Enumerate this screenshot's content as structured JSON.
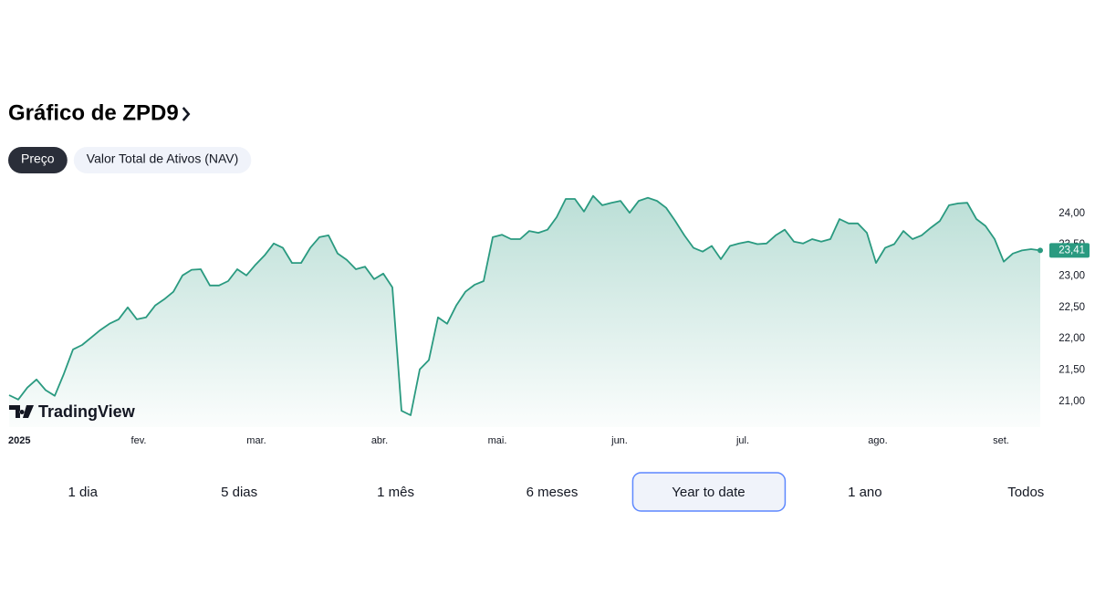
{
  "header": {
    "title": "Gráfico de ZPD9"
  },
  "tabs": [
    {
      "label": "Preço",
      "active": true
    },
    {
      "label": "Valor Total de Ativos (NAV)",
      "active": false
    }
  ],
  "chart_data": {
    "type": "area",
    "watermark": "TradingView",
    "color": "#2a9a80",
    "values": [
      21.1,
      21.03,
      21.22,
      21.35,
      21.18,
      21.09,
      21.44,
      21.83,
      21.9,
      22.02,
      22.14,
      22.24,
      22.31,
      22.5,
      22.31,
      22.34,
      22.53,
      22.63,
      22.75,
      23.01,
      23.1,
      23.11,
      22.85,
      22.85,
      22.92,
      23.11,
      23.01,
      23.18,
      23.33,
      23.52,
      23.45,
      23.21,
      23.21,
      23.45,
      23.62,
      23.65,
      23.36,
      23.26,
      23.11,
      23.15,
      22.95,
      23.04,
      22.82,
      20.85,
      20.78,
      21.51,
      21.66,
      22.34,
      22.24,
      22.53,
      22.75,
      22.86,
      22.92,
      23.62,
      23.66,
      23.59,
      23.59,
      23.72,
      23.69,
      23.74,
      23.94,
      24.23,
      24.23,
      24.03,
      24.28,
      24.13,
      24.17,
      24.2,
      24.01,
      24.2,
      24.25,
      24.2,
      24.09,
      23.88,
      23.65,
      23.45,
      23.39,
      23.48,
      23.27,
      23.48,
      23.52,
      23.55,
      23.51,
      23.52,
      23.65,
      23.74,
      23.55,
      23.52,
      23.59,
      23.55,
      23.59,
      23.91,
      23.84,
      23.84,
      23.69,
      23.21,
      23.45,
      23.51,
      23.72,
      23.59,
      23.65,
      23.77,
      23.88,
      24.13,
      24.16,
      24.17,
      23.91,
      23.8,
      23.59,
      23.23,
      23.36,
      23.41,
      23.43,
      23.41
    ],
    "price_tag": {
      "value": 23.41,
      "label": "23,41"
    },
    "xlim": [
      0,
      113
    ],
    "xticks": [
      {
        "value": 0,
        "label": "2025"
      },
      {
        "value": 14.2,
        "label": "fev."
      },
      {
        "value": 27.1,
        "label": "mar."
      },
      {
        "value": 40.6,
        "label": "abr."
      },
      {
        "value": 53.5,
        "label": "mai."
      },
      {
        "value": 66.9,
        "label": "jun."
      },
      {
        "value": 80.4,
        "label": "jul."
      },
      {
        "value": 95.2,
        "label": "ago."
      },
      {
        "value": 108.7,
        "label": "set."
      }
    ],
    "ylim": [
      20.59,
      24.42
    ],
    "yticks": [
      {
        "value": 21,
        "label": "21,00"
      },
      {
        "value": 21.5,
        "label": "21,50"
      },
      {
        "value": 22,
        "label": "22,00"
      },
      {
        "value": 22.5,
        "label": "22,50"
      },
      {
        "value": 23,
        "label": "23,00"
      },
      {
        "value": 23.5,
        "label": "23,50"
      },
      {
        "value": 24,
        "label": "24,00"
      }
    ]
  },
  "ranges": [
    "1 dia",
    "5 dias",
    "1 mês",
    "6 meses",
    "Year to date",
    "1 ano",
    "Todos"
  ],
  "selected_range": 4
}
